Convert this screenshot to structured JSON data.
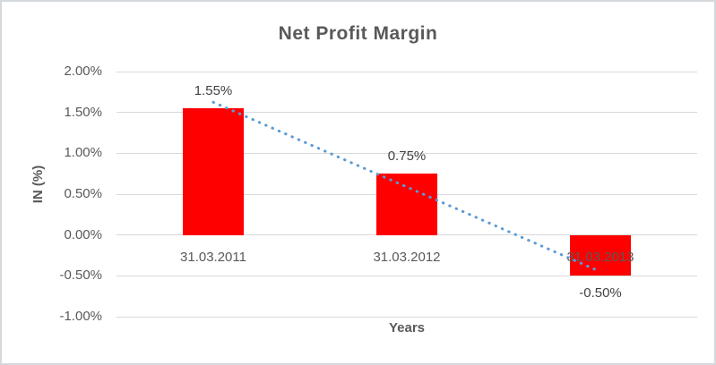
{
  "chart": {
    "title": "Net Profit Margin",
    "y_axis_title": "IN (%)",
    "x_axis_title": "Years"
  },
  "chart_data": {
    "type": "bar",
    "title": "Net Profit Margin",
    "xlabel": "Years",
    "ylabel": "IN (%)",
    "categories": [
      "31.03.2011",
      "31.03.2012",
      "31.03.2013"
    ],
    "values": [
      1.55,
      0.75,
      -0.5
    ],
    "data_labels": [
      "1.55%",
      "0.75%",
      "-0.50%"
    ],
    "y_tick_values": [
      2.0,
      1.5,
      1.0,
      0.5,
      0.0,
      -0.5,
      -1.0
    ],
    "y_tick_labels": [
      "2.00%",
      "1.50%",
      "1.00%",
      "0.50%",
      "0.00%",
      "-0.50%",
      "-1.00%"
    ],
    "ylim": [
      -1.0,
      2.0
    ],
    "grid": true,
    "legend": "none",
    "bar_color": "#ff0000",
    "gridline_color": "#d9d9d9",
    "text_color": "#595959",
    "trendline": {
      "type": "linear",
      "style": "dotted",
      "color": "#5b9bd5",
      "start_value": 1.625,
      "end_value": -0.45
    }
  }
}
